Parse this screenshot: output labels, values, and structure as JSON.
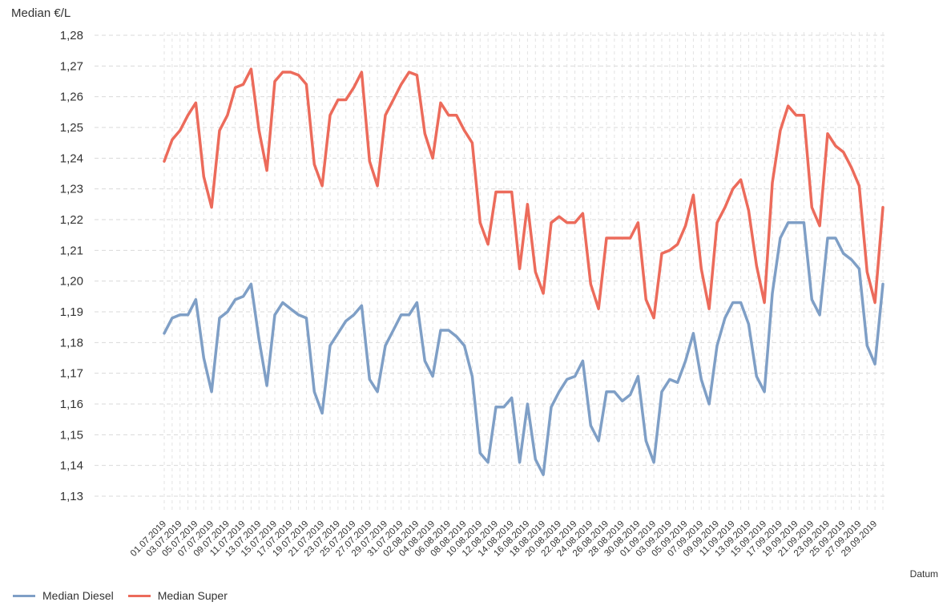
{
  "chart_data": {
    "type": "line",
    "ylabel": "Median €/L",
    "xlabel": "Datum",
    "ylim": [
      1.13,
      1.28
    ],
    "yticks": [
      "1,13",
      "1,14",
      "1,15",
      "1,16",
      "1,17",
      "1,18",
      "1,19",
      "1,20",
      "1,21",
      "1,22",
      "1,23",
      "1,24",
      "1,25",
      "1,26",
      "1,27",
      "1,28"
    ],
    "grid": true,
    "legend_position": "bottom-left",
    "x_tick_labels": [
      "01.07.2019",
      "03.07.2019",
      "05.07.2019",
      "07.07.2019",
      "09.07.2019",
      "11.07.2019",
      "13.07.2019",
      "15.07.2019",
      "17.07.2019",
      "19.07.2019",
      "21.07.2019",
      "23.07.2019",
      "25.07.2019",
      "27.07.2019",
      "29.07.2019",
      "31.07.2019",
      "02.08.2019",
      "04.08.2019",
      "06.08.2019",
      "08.08.2019",
      "10.08.2019",
      "12.08.2019",
      "14.08.2019",
      "16.08.2019",
      "18.08.2019",
      "20.08.2019",
      "22.08.2019",
      "24.08.2019",
      "26.08.2019",
      "28.08.2019",
      "30.08.2019",
      "01.09.2019",
      "03.09.2019",
      "05.09.2019",
      "07.09.2019",
      "09.09.2019",
      "11.09.2019",
      "13.09.2019",
      "15.09.2019",
      "17.09.2019",
      "19.09.2019",
      "21.09.2019",
      "23.09.2019",
      "25.09.2019",
      "27.09.2019",
      "29.09.2019"
    ],
    "x_start": "2019-07-01",
    "x_end": "2019-09-30",
    "series": [
      {
        "name": "Median Diesel",
        "color": "#7f9fc6",
        "points": [
          [
            "2019-07-01",
            1.183
          ],
          [
            "2019-07-02",
            1.188
          ],
          [
            "2019-07-03",
            1.189
          ],
          [
            "2019-07-04",
            1.189
          ],
          [
            "2019-07-05",
            1.194
          ],
          [
            "2019-07-06",
            1.175
          ],
          [
            "2019-07-07",
            1.164
          ],
          [
            "2019-07-08",
            1.188
          ],
          [
            "2019-07-09",
            1.19
          ],
          [
            "2019-07-10",
            1.194
          ],
          [
            "2019-07-11",
            1.195
          ],
          [
            "2019-07-12",
            1.199
          ],
          [
            "2019-07-13",
            1.181
          ],
          [
            "2019-07-14",
            1.166
          ],
          [
            "2019-07-15",
            1.189
          ],
          [
            "2019-07-16",
            1.193
          ],
          [
            "2019-07-17",
            1.191
          ],
          [
            "2019-07-18",
            1.189
          ],
          [
            "2019-07-19",
            1.188
          ],
          [
            "2019-07-20",
            1.164
          ],
          [
            "2019-07-21",
            1.157
          ],
          [
            "2019-07-22",
            1.179
          ],
          [
            "2019-07-23",
            1.183
          ],
          [
            "2019-07-24",
            1.187
          ],
          [
            "2019-07-25",
            1.189
          ],
          [
            "2019-07-26",
            1.192
          ],
          [
            "2019-07-27",
            1.168
          ],
          [
            "2019-07-28",
            1.164
          ],
          [
            "2019-07-29",
            1.179
          ],
          [
            "2019-07-30",
            1.184
          ],
          [
            "2019-07-31",
            1.189
          ],
          [
            "2019-08-01",
            1.189
          ],
          [
            "2019-08-02",
            1.193
          ],
          [
            "2019-08-03",
            1.174
          ],
          [
            "2019-08-04",
            1.169
          ],
          [
            "2019-08-05",
            1.184
          ],
          [
            "2019-08-06",
            1.184
          ],
          [
            "2019-08-07",
            1.182
          ],
          [
            "2019-08-08",
            1.179
          ],
          [
            "2019-08-09",
            1.169
          ],
          [
            "2019-08-10",
            1.144
          ],
          [
            "2019-08-11",
            1.141
          ],
          [
            "2019-08-12",
            1.159
          ],
          [
            "2019-08-13",
            1.159
          ],
          [
            "2019-08-14",
            1.162
          ],
          [
            "2019-08-15",
            1.141
          ],
          [
            "2019-08-16",
            1.16
          ],
          [
            "2019-08-17",
            1.142
          ],
          [
            "2019-08-18",
            1.137
          ],
          [
            "2019-08-19",
            1.159
          ],
          [
            "2019-08-20",
            1.164
          ],
          [
            "2019-08-21",
            1.168
          ],
          [
            "2019-08-22",
            1.169
          ],
          [
            "2019-08-23",
            1.174
          ],
          [
            "2019-08-24",
            1.153
          ],
          [
            "2019-08-25",
            1.148
          ],
          [
            "2019-08-26",
            1.164
          ],
          [
            "2019-08-27",
            1.164
          ],
          [
            "2019-08-28",
            1.161
          ],
          [
            "2019-08-29",
            1.163
          ],
          [
            "2019-08-30",
            1.169
          ],
          [
            "2019-08-31",
            1.148
          ],
          [
            "2019-09-01",
            1.141
          ],
          [
            "2019-09-02",
            1.164
          ],
          [
            "2019-09-03",
            1.168
          ],
          [
            "2019-09-04",
            1.167
          ],
          [
            "2019-09-05",
            1.174
          ],
          [
            "2019-09-06",
            1.183
          ],
          [
            "2019-09-07",
            1.168
          ],
          [
            "2019-09-08",
            1.16
          ],
          [
            "2019-09-09",
            1.179
          ],
          [
            "2019-09-10",
            1.188
          ],
          [
            "2019-09-11",
            1.193
          ],
          [
            "2019-09-12",
            1.193
          ],
          [
            "2019-09-13",
            1.186
          ],
          [
            "2019-09-14",
            1.169
          ],
          [
            "2019-09-15",
            1.164
          ],
          [
            "2019-09-16",
            1.196
          ],
          [
            "2019-09-17",
            1.214
          ],
          [
            "2019-09-18",
            1.219
          ],
          [
            "2019-09-19",
            1.219
          ],
          [
            "2019-09-20",
            1.219
          ],
          [
            "2019-09-21",
            1.194
          ],
          [
            "2019-09-22",
            1.189
          ],
          [
            "2019-09-23",
            1.214
          ],
          [
            "2019-09-24",
            1.214
          ],
          [
            "2019-09-25",
            1.209
          ],
          [
            "2019-09-26",
            1.207
          ],
          [
            "2019-09-27",
            1.204
          ],
          [
            "2019-09-28",
            1.179
          ],
          [
            "2019-09-29",
            1.173
          ],
          [
            "2019-09-30",
            1.199
          ]
        ]
      },
      {
        "name": "Median Super",
        "color": "#ec6b5b",
        "points": [
          [
            "2019-07-01",
            1.239
          ],
          [
            "2019-07-02",
            1.246
          ],
          [
            "2019-07-03",
            1.249
          ],
          [
            "2019-07-04",
            1.254
          ],
          [
            "2019-07-05",
            1.258
          ],
          [
            "2019-07-06",
            1.234
          ],
          [
            "2019-07-07",
            1.224
          ],
          [
            "2019-07-08",
            1.249
          ],
          [
            "2019-07-09",
            1.254
          ],
          [
            "2019-07-10",
            1.263
          ],
          [
            "2019-07-11",
            1.264
          ],
          [
            "2019-07-12",
            1.269
          ],
          [
            "2019-07-13",
            1.249
          ],
          [
            "2019-07-14",
            1.236
          ],
          [
            "2019-07-15",
            1.265
          ],
          [
            "2019-07-16",
            1.268
          ],
          [
            "2019-07-17",
            1.268
          ],
          [
            "2019-07-18",
            1.267
          ],
          [
            "2019-07-19",
            1.264
          ],
          [
            "2019-07-20",
            1.238
          ],
          [
            "2019-07-21",
            1.231
          ],
          [
            "2019-07-22",
            1.254
          ],
          [
            "2019-07-23",
            1.259
          ],
          [
            "2019-07-24",
            1.259
          ],
          [
            "2019-07-25",
            1.263
          ],
          [
            "2019-07-26",
            1.268
          ],
          [
            "2019-07-27",
            1.239
          ],
          [
            "2019-07-28",
            1.231
          ],
          [
            "2019-07-29",
            1.254
          ],
          [
            "2019-07-30",
            1.259
          ],
          [
            "2019-07-31",
            1.264
          ],
          [
            "2019-08-01",
            1.268
          ],
          [
            "2019-08-02",
            1.267
          ],
          [
            "2019-08-03",
            1.248
          ],
          [
            "2019-08-04",
            1.24
          ],
          [
            "2019-08-05",
            1.258
          ],
          [
            "2019-08-06",
            1.254
          ],
          [
            "2019-08-07",
            1.254
          ],
          [
            "2019-08-08",
            1.249
          ],
          [
            "2019-08-09",
            1.245
          ],
          [
            "2019-08-10",
            1.219
          ],
          [
            "2019-08-11",
            1.212
          ],
          [
            "2019-08-12",
            1.229
          ],
          [
            "2019-08-13",
            1.229
          ],
          [
            "2019-08-14",
            1.229
          ],
          [
            "2019-08-15",
            1.204
          ],
          [
            "2019-08-16",
            1.225
          ],
          [
            "2019-08-17",
            1.203
          ],
          [
            "2019-08-18",
            1.196
          ],
          [
            "2019-08-19",
            1.219
          ],
          [
            "2019-08-20",
            1.221
          ],
          [
            "2019-08-21",
            1.219
          ],
          [
            "2019-08-22",
            1.219
          ],
          [
            "2019-08-23",
            1.222
          ],
          [
            "2019-08-24",
            1.199
          ],
          [
            "2019-08-25",
            1.191
          ],
          [
            "2019-08-26",
            1.214
          ],
          [
            "2019-08-27",
            1.214
          ],
          [
            "2019-08-28",
            1.214
          ],
          [
            "2019-08-29",
            1.214
          ],
          [
            "2019-08-30",
            1.219
          ],
          [
            "2019-08-31",
            1.194
          ],
          [
            "2019-09-01",
            1.188
          ],
          [
            "2019-09-02",
            1.209
          ],
          [
            "2019-09-03",
            1.21
          ],
          [
            "2019-09-04",
            1.212
          ],
          [
            "2019-09-05",
            1.218
          ],
          [
            "2019-09-06",
            1.228
          ],
          [
            "2019-09-07",
            1.204
          ],
          [
            "2019-09-08",
            1.191
          ],
          [
            "2019-09-09",
            1.219
          ],
          [
            "2019-09-10",
            1.224
          ],
          [
            "2019-09-11",
            1.23
          ],
          [
            "2019-09-12",
            1.233
          ],
          [
            "2019-09-13",
            1.223
          ],
          [
            "2019-09-14",
            1.205
          ],
          [
            "2019-09-15",
            1.193
          ],
          [
            "2019-09-16",
            1.232
          ],
          [
            "2019-09-17",
            1.249
          ],
          [
            "2019-09-18",
            1.257
          ],
          [
            "2019-09-19",
            1.254
          ],
          [
            "2019-09-20",
            1.254
          ],
          [
            "2019-09-21",
            1.224
          ],
          [
            "2019-09-22",
            1.218
          ],
          [
            "2019-09-23",
            1.248
          ],
          [
            "2019-09-24",
            1.244
          ],
          [
            "2019-09-25",
            1.242
          ],
          [
            "2019-09-26",
            1.237
          ],
          [
            "2019-09-27",
            1.231
          ],
          [
            "2019-09-28",
            1.203
          ],
          [
            "2019-09-29",
            1.193
          ],
          [
            "2019-09-30",
            1.224
          ]
        ]
      }
    ]
  }
}
